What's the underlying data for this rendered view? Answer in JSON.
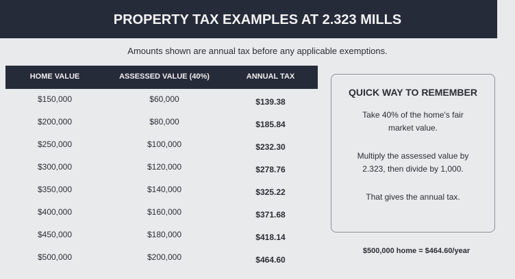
{
  "header": {
    "title": "PROPERTY TAX EXAMPLES AT 2.323 MILLS"
  },
  "subtitle": "Amounts shown are annual tax before any applicable exemptions.",
  "table": {
    "columns": [
      "HOME VALUE",
      "ASSESSED VALUE (40%)",
      "ANNUAL TAX"
    ],
    "rows": [
      [
        "$150,000",
        "$60,000",
        "$139.38"
      ],
      [
        "$200,000",
        "$80,000",
        "$185.84"
      ],
      [
        "$250,000",
        "$100,000",
        "$232.30"
      ],
      [
        "$300,000",
        "$120,000",
        "$278.76"
      ],
      [
        "$350,000",
        "$140,000",
        "$325.22"
      ],
      [
        "$400,000",
        "$160,000",
        "$371.68"
      ],
      [
        "$450,000",
        "$180,000",
        "$418.14"
      ],
      [
        "$500,000",
        "$200,000",
        "$464.60"
      ]
    ]
  },
  "sidebar": {
    "title": "QUICK WAY TO REMEMBER",
    "paragraphs": [
      "Take 40% of the home's fair market value.",
      "Multiply the assessed value by 2.323, then divide by 1,000.",
      "That gives the annual tax."
    ]
  },
  "note": "$500,000 home = $464.60/year"
}
